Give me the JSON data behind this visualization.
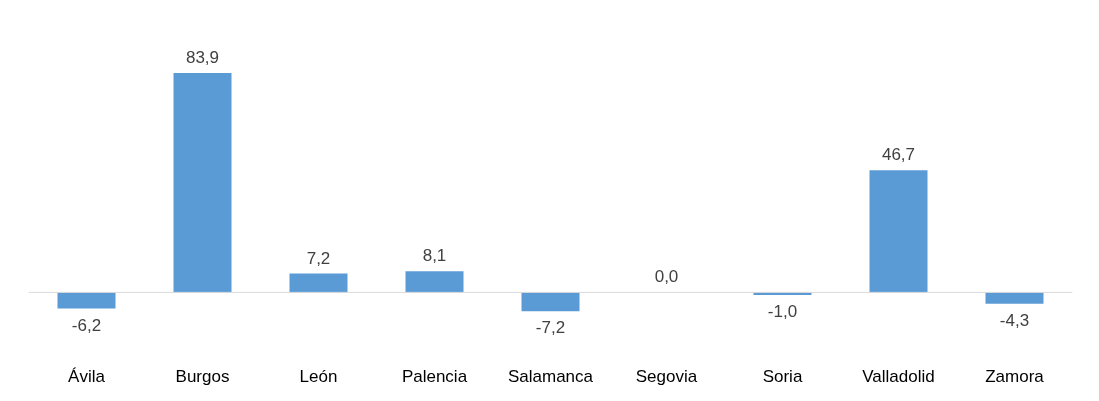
{
  "chart_data": {
    "type": "bar",
    "categories": [
      "Ávila",
      "Burgos",
      "León",
      "Palencia",
      "Salamanca",
      "Segovia",
      "Soria",
      "Valladolid",
      "Zamora"
    ],
    "values": [
      -6.2,
      83.9,
      7.2,
      8.1,
      -7.2,
      0.0,
      -1.0,
      46.7,
      -4.3
    ],
    "value_labels": [
      "-6,2",
      "83,9",
      "7,2",
      "8,1",
      "-7,2",
      "0,0",
      "-1,0",
      "46,7",
      "-4,3"
    ],
    "color": "#5b9bd5",
    "grid": false
  }
}
